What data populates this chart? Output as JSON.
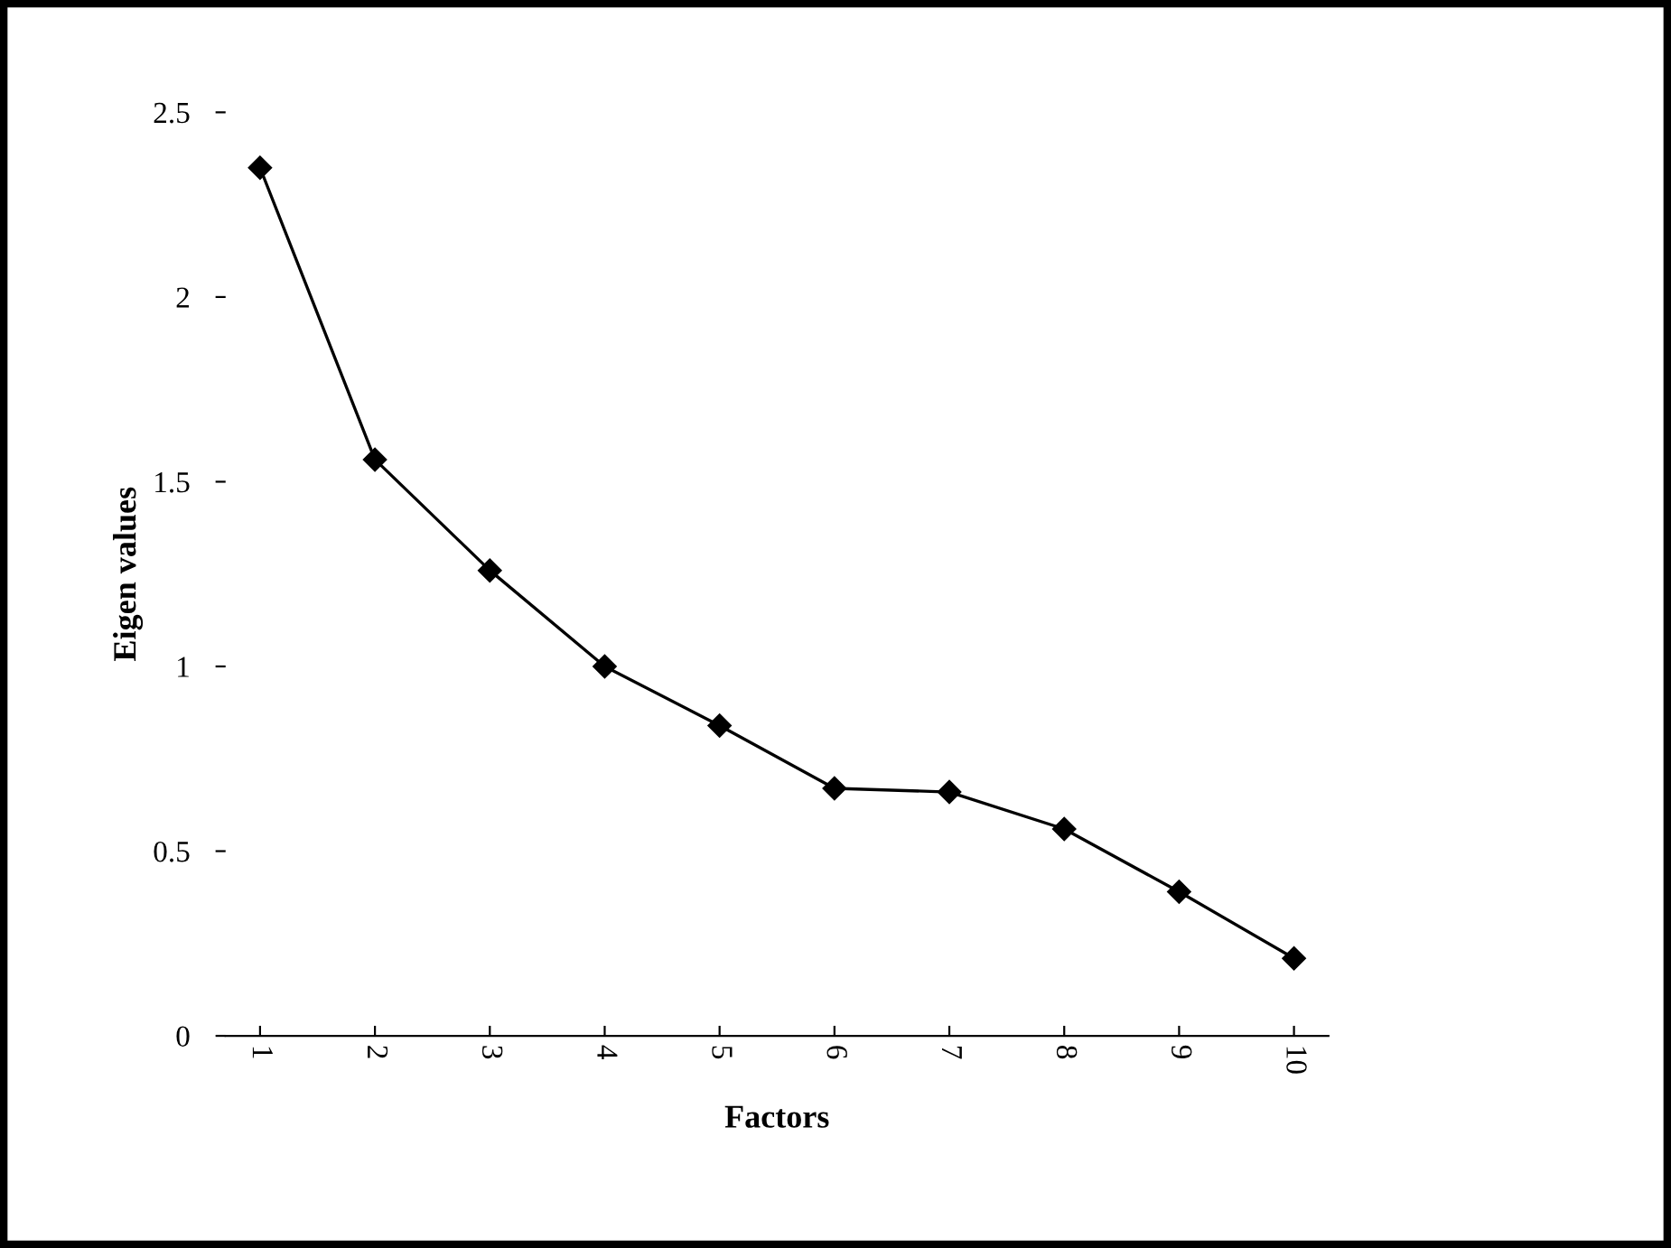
{
  "chart_data": {
    "type": "line",
    "xlabel": "Factors",
    "ylabel": "Eigen values",
    "categories": [
      "1",
      "2",
      "3",
      "4",
      "5",
      "6",
      "7",
      "8",
      "9",
      "10"
    ],
    "series": [
      {
        "color": "#000000",
        "values": [
          2.35,
          1.56,
          1.26,
          1.0,
          0.84,
          0.67,
          0.66,
          0.56,
          0.39,
          0.21
        ]
      }
    ],
    "ylim": [
      0,
      2.5
    ],
    "yticks": [
      0,
      0.5,
      1,
      1.5,
      2,
      2.5
    ],
    "grid": false,
    "marker": "diamond",
    "line_style": "solid"
  }
}
